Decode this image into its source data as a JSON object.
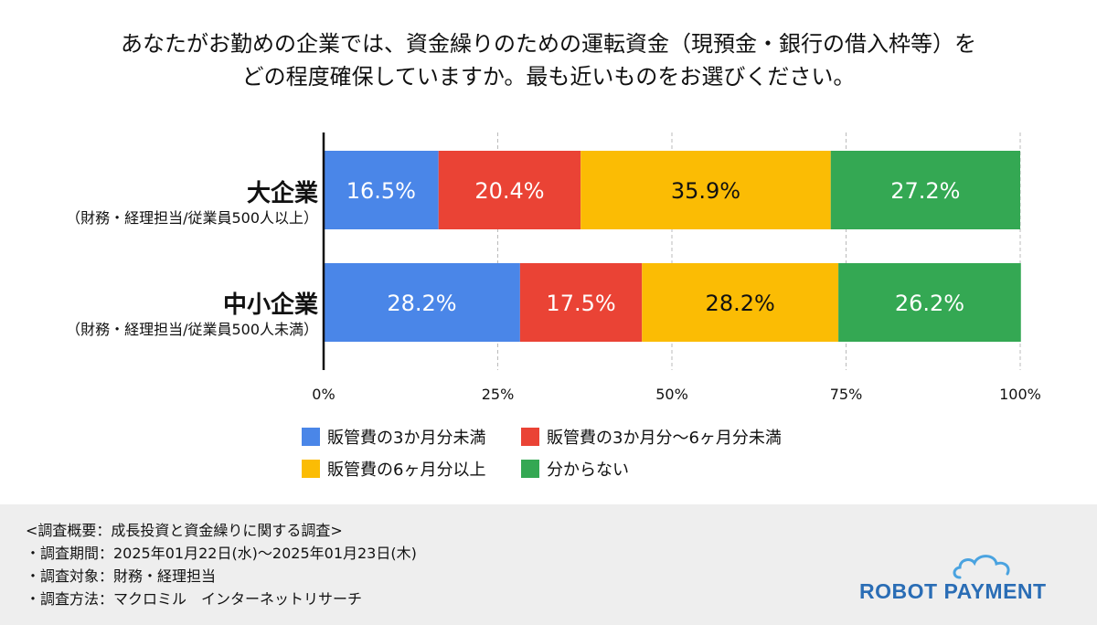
{
  "title": {
    "line1": "あなたがお勤めの企業では、資金繰りのための運転資金（現預金・銀行の借入枠等）を",
    "line2": "どの程度確保していますか。最も近いものをお選びください。"
  },
  "chart_data": {
    "type": "bar",
    "orientation": "horizontal",
    "stacked": "percent",
    "categories": [
      {
        "name": "大企業",
        "sub": "（財務・経理担当/従業員500人以上）"
      },
      {
        "name": "中小企業",
        "sub": "（財務・経理担当/従業員500人未満）"
      }
    ],
    "series": [
      {
        "name": "販管費の3か月分未満",
        "color": "#4a86e8",
        "label_color": "#ffffff",
        "values": [
          16.5,
          28.2
        ]
      },
      {
        "name": "販管費の3か月分〜6ヶ月分未満",
        "color": "#ea4335",
        "label_color": "#ffffff",
        "values": [
          20.4,
          17.5
        ]
      },
      {
        "name": "販管費の6ヶ月分以上",
        "color": "#fbbc04",
        "label_color": "#111111",
        "values": [
          35.9,
          28.2
        ]
      },
      {
        "name": "分からない",
        "color": "#34a853",
        "label_color": "#ffffff",
        "values": [
          27.2,
          26.2
        ]
      }
    ],
    "data_labels": [
      [
        "16.5%",
        "20.4%",
        "35.9%",
        "27.2%"
      ],
      [
        "28.2%",
        "17.5%",
        "28.2%",
        "26.2%"
      ]
    ],
    "x_ticks": [
      "0%",
      "25%",
      "50%",
      "75%",
      "100%"
    ],
    "xlim": [
      0,
      100
    ],
    "grid": true,
    "legend_position": "bottom"
  },
  "footer": {
    "lines": [
      "<調査概要：成長投資と資金繰りに関する調査>",
      "・調査期間：2025年01月22日(水)〜2025年01月23日(木)",
      "・調査対象：財務・経理担当",
      "・調査方法：マクロミル　インターネットリサーチ"
    ],
    "logo_text": "ROBOT PAYMENT",
    "logo_color": "#2a6db5"
  }
}
